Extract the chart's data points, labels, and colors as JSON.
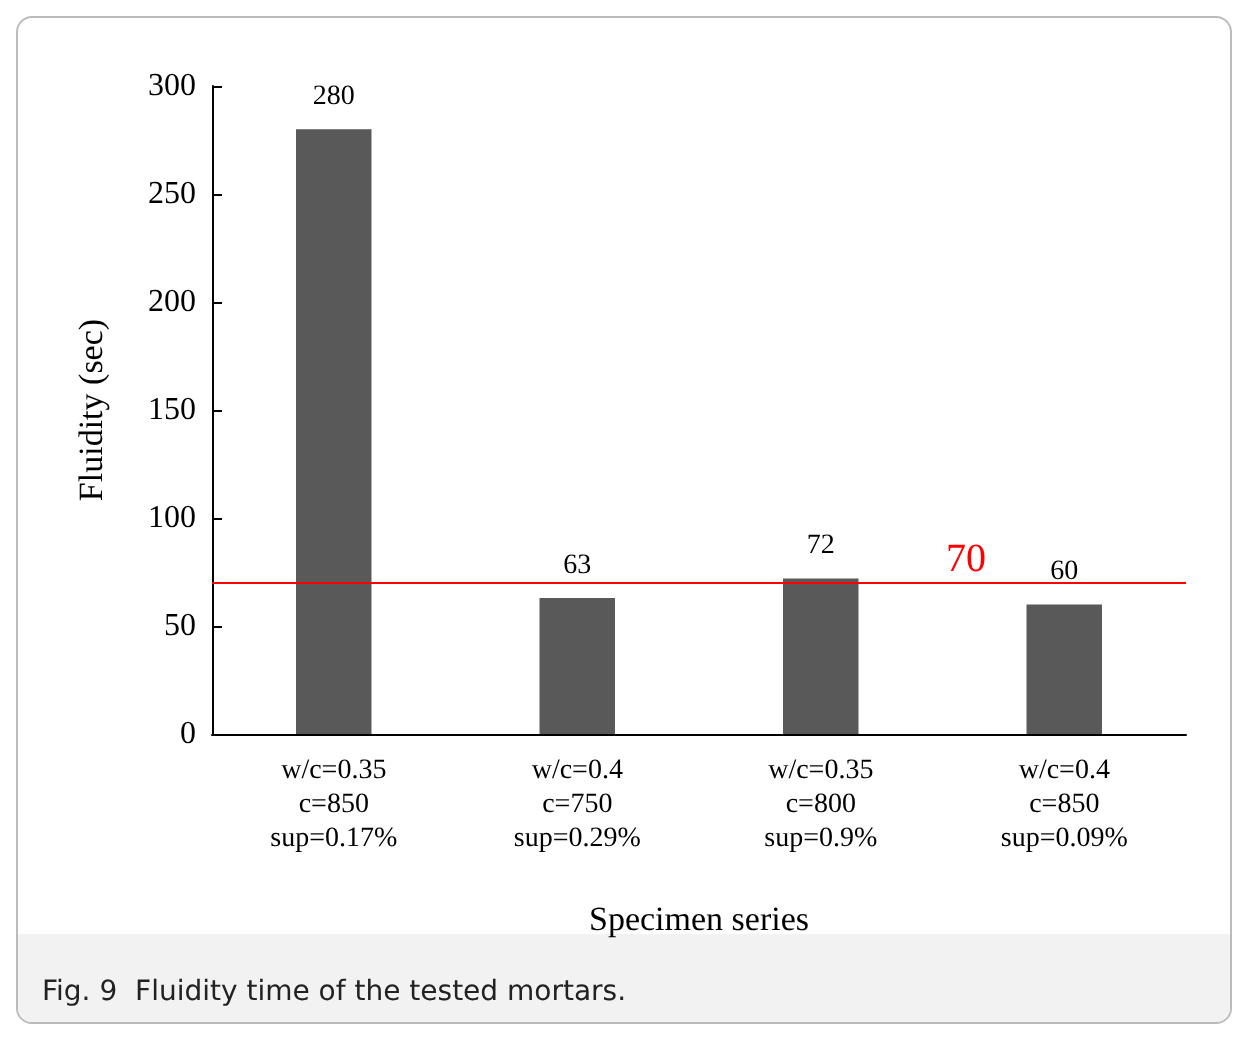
{
  "chart_data": {
    "type": "bar",
    "xlabel": "Specimen series",
    "ylabel": "Fluidity (sec)",
    "categories": [
      "w/c=0.35\nc=850\nsup=0.17%",
      "w/c=0.4\nc=750\nsup=0.29%",
      "w/c=0.35\nc=800\nsup=0.9%",
      "w/c=0.4\nc=850\nsup=0.09%"
    ],
    "values": [
      280,
      63,
      72,
      60
    ],
    "color": "#595959",
    "data_labels": true,
    "ylim": [
      0,
      300
    ],
    "yticks": [
      0,
      50,
      100,
      150,
      200,
      250,
      300
    ],
    "grid": false,
    "ref_lines": [
      {
        "axis": "y",
        "value": 70,
        "label": "70",
        "color": "#ff0000"
      }
    ],
    "annotations": [
      "Fig. 9  Fluidity time of the tested mortars."
    ]
  }
}
